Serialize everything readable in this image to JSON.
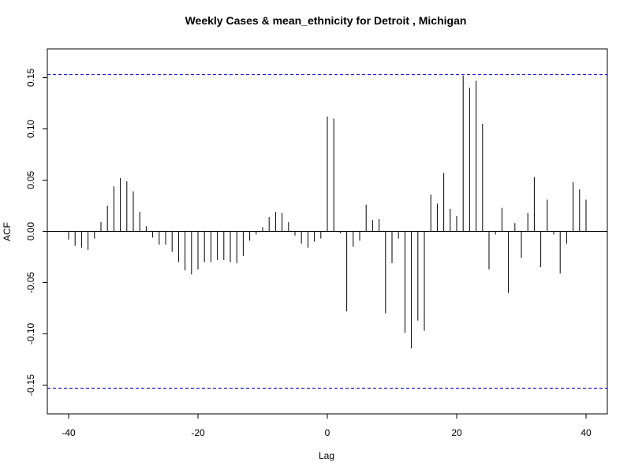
{
  "chart_data": {
    "type": "bar",
    "title": "Weekly Cases & mean_ethnicity for Detroit , Michigan",
    "xlabel": "Lag",
    "ylabel": "ACF",
    "xlim": [
      -40,
      40
    ],
    "ylim": [
      -0.165,
      0.165
    ],
    "x_ticks": [
      -40,
      -20,
      0,
      20,
      40
    ],
    "y_ticks": [
      -0.15,
      -0.1,
      -0.05,
      0.0,
      0.05,
      0.1,
      0.15
    ],
    "x_tick_labels": [
      "-40",
      "-20",
      "0",
      "20",
      "40"
    ],
    "y_tick_labels": [
      "-0.15",
      "-0.10",
      "-0.05",
      "0.00",
      "0.05",
      "0.10",
      "0.15"
    ],
    "confidence_bound": 0.153,
    "grid": false,
    "lags": [
      -40,
      -39,
      -38,
      -37,
      -36,
      -35,
      -34,
      -33,
      -32,
      -31,
      -30,
      -29,
      -28,
      -27,
      -26,
      -25,
      -24,
      -23,
      -22,
      -21,
      -20,
      -19,
      -18,
      -17,
      -16,
      -15,
      -14,
      -13,
      -12,
      -11,
      -10,
      -9,
      -8,
      -7,
      -6,
      -5,
      -4,
      -3,
      -2,
      -1,
      0,
      1,
      2,
      3,
      4,
      5,
      6,
      7,
      8,
      9,
      10,
      11,
      12,
      13,
      14,
      15,
      16,
      17,
      18,
      19,
      20,
      21,
      22,
      23,
      24,
      25,
      26,
      27,
      28,
      29,
      30,
      31,
      32,
      33,
      34,
      35,
      36,
      37,
      38,
      39,
      40
    ],
    "values": [
      -0.008,
      -0.014,
      -0.016,
      -0.018,
      -0.007,
      0.009,
      0.025,
      0.044,
      0.052,
      0.049,
      0.039,
      0.019,
      0.005,
      -0.006,
      -0.013,
      -0.013,
      -0.02,
      -0.03,
      -0.038,
      -0.042,
      -0.037,
      -0.03,
      -0.03,
      -0.028,
      -0.028,
      -0.03,
      -0.031,
      -0.024,
      -0.009,
      -0.003,
      0.004,
      0.014,
      0.019,
      0.018,
      0.009,
      -0.004,
      -0.012,
      -0.016,
      -0.01,
      -0.007,
      0.112,
      0.11,
      -0.002,
      -0.078,
      -0.015,
      -0.009,
      0.026,
      0.011,
      0.012,
      -0.08,
      -0.031,
      -0.007,
      -0.099,
      -0.114,
      -0.087,
      -0.097,
      0.036,
      0.027,
      0.057,
      0.022,
      0.015,
      0.152,
      0.14,
      0.147,
      0.105,
      -0.037,
      -0.003,
      0.023,
      -0.06,
      0.008,
      -0.026,
      0.018,
      0.053,
      -0.035,
      0.031,
      -0.003,
      -0.041,
      -0.012,
      0.048,
      0.041,
      0.031
    ]
  }
}
